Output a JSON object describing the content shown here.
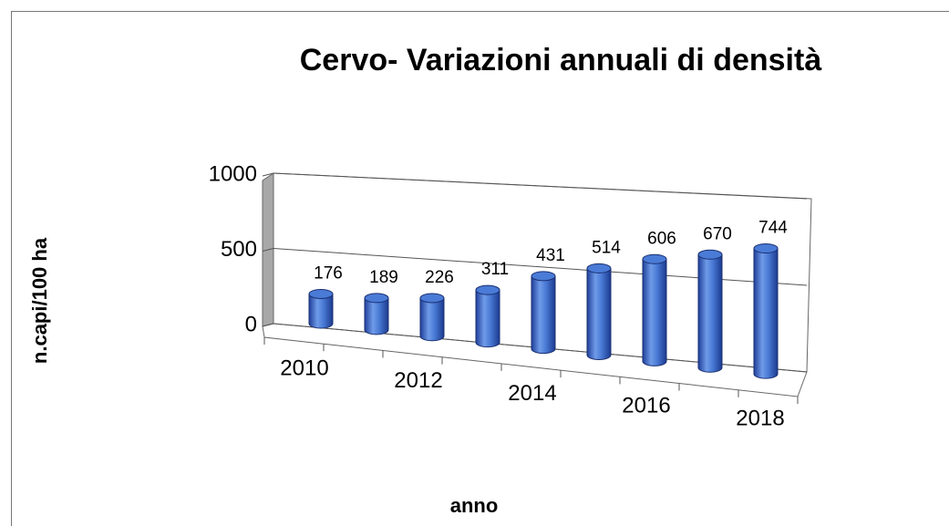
{
  "chart_data": {
    "type": "bar3d",
    "title": "Cervo- Variazioni annuali di densità",
    "x_label": "anno",
    "y_label": "n.capi/100 ha",
    "categories": [
      "2010",
      null,
      "2012",
      null,
      "2014",
      null,
      "2016",
      null,
      "2018"
    ],
    "values": [
      176,
      189,
      226,
      311,
      431,
      514,
      606,
      670,
      744
    ],
    "color": "#4a7bd6",
    "ylim": [
      0,
      1000
    ],
    "yticks": [
      0,
      500,
      1000
    ],
    "grid": true
  }
}
